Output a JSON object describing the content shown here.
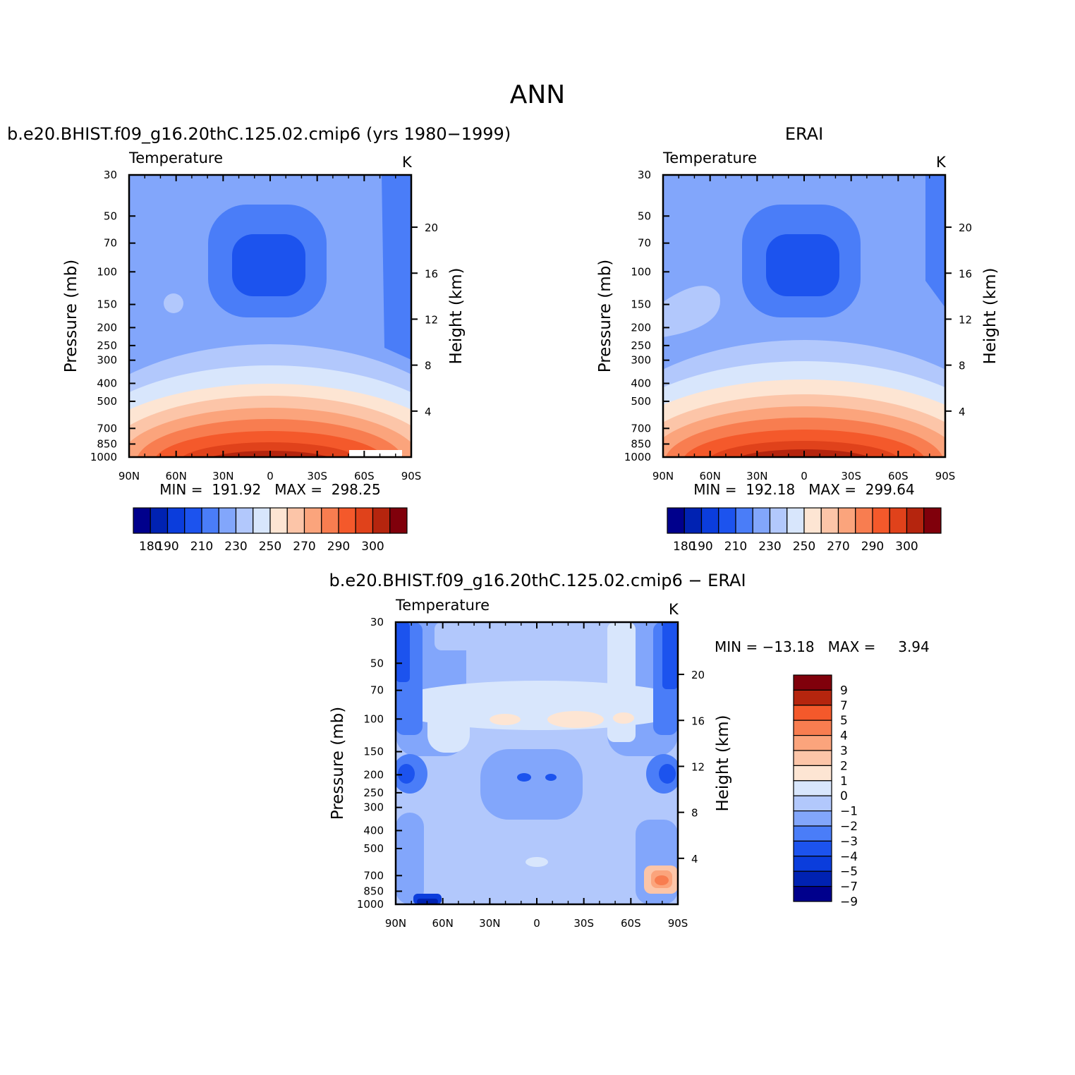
{
  "figure": {
    "title": "ANN",
    "diff_title": "b.e20.BHIST.f09_g16.20thC.125.02.cmip6 − ERAI"
  },
  "palettes": {
    "abs": [
      "#00008c",
      "#0022b2",
      "#0b3ddc",
      "#1c53ee",
      "#4a7df8",
      "#82a6fb",
      "#b2c8fc",
      "#d8e6fc",
      "#fde5d3",
      "#fcc5a8",
      "#fba47c",
      "#f87d50",
      "#f4592b",
      "#e0421b",
      "#b5250e",
      "#80000b"
    ],
    "diff": [
      "#00008c",
      "#0022b2",
      "#0b3ddc",
      "#1c53ee",
      "#4a7df8",
      "#82a6fb",
      "#b2c8fc",
      "#d8e6fc",
      "#fde5d3",
      "#fcc5a8",
      "#fba47c",
      "#f87d50",
      "#f4592b",
      "#b5250e",
      "#80000b"
    ]
  },
  "chart_data": [
    {
      "type": "heatmap",
      "id": "model",
      "title": "b.e20.BHIST.f09_g16.20thC.125.02.cmip6 (yrs 1980−1999)",
      "left_label": "Temperature",
      "units": "K",
      "xlabel": "",
      "ylabel": "Pressure (mb)",
      "ylabel_right": "Height (km)",
      "x_ticks": [
        "90N",
        "60N",
        "30N",
        "0",
        "30S",
        "60S",
        "90S"
      ],
      "y_ticks": [
        "30",
        "50",
        "70",
        "100",
        "150",
        "200",
        "250",
        "300",
        "400",
        "500",
        "700",
        "850",
        "1000"
      ],
      "y_ticks_right": [
        "20",
        "16",
        "12",
        "8",
        "4"
      ],
      "stats_text": "MIN =  191.92   MAX =  298.25",
      "colorbar_labels": [
        "180",
        "190",
        "210",
        "230",
        "250",
        "270",
        "290",
        "300"
      ],
      "colorbar_levels": [
        180,
        185,
        190,
        200,
        210,
        220,
        230,
        240,
        250,
        260,
        270,
        280,
        290,
        295,
        300
      ],
      "min": 191.92,
      "max": 298.25
    },
    {
      "type": "heatmap",
      "id": "obs",
      "title": "ERAI",
      "left_label": "Temperature",
      "units": "K",
      "xlabel": "",
      "ylabel": "Pressure (mb)",
      "ylabel_right": "Height (km)",
      "x_ticks": [
        "90N",
        "60N",
        "30N",
        "0",
        "30S",
        "60S",
        "90S"
      ],
      "y_ticks": [
        "30",
        "50",
        "70",
        "100",
        "150",
        "200",
        "250",
        "300",
        "400",
        "500",
        "700",
        "850",
        "1000"
      ],
      "y_ticks_right": [
        "20",
        "16",
        "12",
        "8",
        "4"
      ],
      "stats_text": "MIN =  192.18   MAX =  299.64",
      "colorbar_labels": [
        "180",
        "190",
        "210",
        "230",
        "250",
        "270",
        "290",
        "300"
      ],
      "colorbar_levels": [
        180,
        185,
        190,
        200,
        210,
        220,
        230,
        240,
        250,
        260,
        270,
        280,
        290,
        295,
        300
      ],
      "min": 192.18,
      "max": 299.64
    },
    {
      "type": "heatmap",
      "id": "diff",
      "title": "b.e20.BHIST.f09_g16.20thC.125.02.cmip6 − ERAI",
      "left_label": "Temperature",
      "units": "K",
      "xlabel": "",
      "ylabel": "Pressure (mb)",
      "ylabel_right": "Height (km)",
      "x_ticks": [
        "90N",
        "60N",
        "30N",
        "0",
        "30S",
        "60S",
        "90S"
      ],
      "y_ticks": [
        "30",
        "50",
        "70",
        "100",
        "150",
        "200",
        "250",
        "300",
        "400",
        "500",
        "700",
        "850",
        "1000"
      ],
      "y_ticks_right": [
        "20",
        "16",
        "12",
        "8",
        "4"
      ],
      "stats_text": "MIN = −13.18   MAX =     3.94",
      "colorbar_labels": [
        "9",
        "7",
        "5",
        "4",
        "3",
        "2",
        "1",
        "0",
        "−1",
        "−2",
        "−3",
        "−4",
        "−5",
        "−7",
        "−9"
      ],
      "colorbar_levels": [
        -9,
        -7,
        -5,
        -4,
        -3,
        -2,
        -1,
        0,
        1,
        2,
        3,
        4,
        5,
        7,
        9
      ],
      "min": -13.18,
      "max": 3.94
    }
  ]
}
